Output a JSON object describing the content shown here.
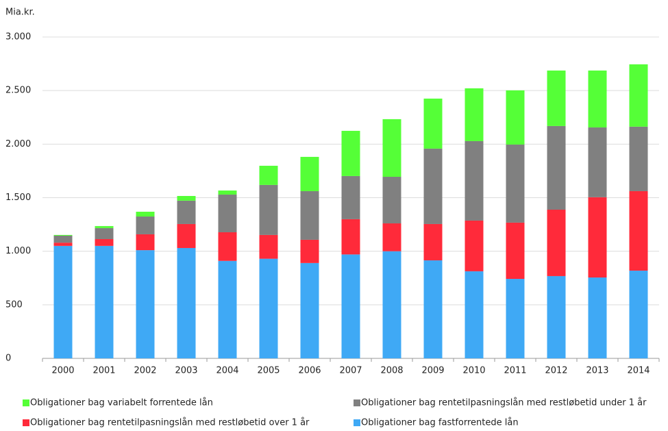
{
  "chart_data": {
    "type": "stacked_bar",
    "y_label": "Mia.kr.",
    "categories": [
      "2000",
      "2001",
      "2002",
      "2003",
      "2004",
      "2005",
      "2006",
      "2007",
      "2008",
      "2009",
      "2010",
      "2011",
      "2012",
      "2013",
      "2014"
    ],
    "series": [
      {
        "name": "Obligationer bag fastforrentede lån",
        "color": "#3fa9f5",
        "values": [
          1050,
          1050,
          1010,
          1030,
          910,
          930,
          890,
          970,
          1000,
          915,
          813,
          742,
          768,
          755,
          819
        ]
      },
      {
        "name": "Obligationer bag rentetilpasningslån med restløbetid over 1 år",
        "color": "#ff2a3a",
        "values": [
          30,
          63,
          148,
          224,
          267,
          222,
          217,
          329,
          260,
          339,
          473,
          525,
          620,
          749,
          742
        ]
      },
      {
        "name": "Obligationer bag rentetilpasningslån med restløbetid under 1 år",
        "color": "#808080",
        "values": [
          65,
          103,
          166,
          218,
          352,
          467,
          454,
          403,
          435,
          704,
          742,
          729,
          781,
          652,
          602
        ]
      },
      {
        "name": "Obligationer bag variabelt forrentede lån",
        "color": "#55ff37",
        "values": [
          7,
          19,
          45,
          44,
          38,
          179,
          320,
          422,
          538,
          467,
          493,
          506,
          518,
          531,
          582
        ]
      }
    ],
    "ylim": [
      0,
      3000
    ],
    "yticks": [
      0,
      500,
      {
        "value": 1000,
        "label": "1.000"
      },
      {
        "value": 1500,
        "label": "1.500"
      },
      {
        "value": 2000,
        "label": "2.000"
      },
      {
        "value": 2500,
        "label": "2.500"
      },
      {
        "value": 3000,
        "label": "3.000"
      }
    ],
    "grid": true
  }
}
